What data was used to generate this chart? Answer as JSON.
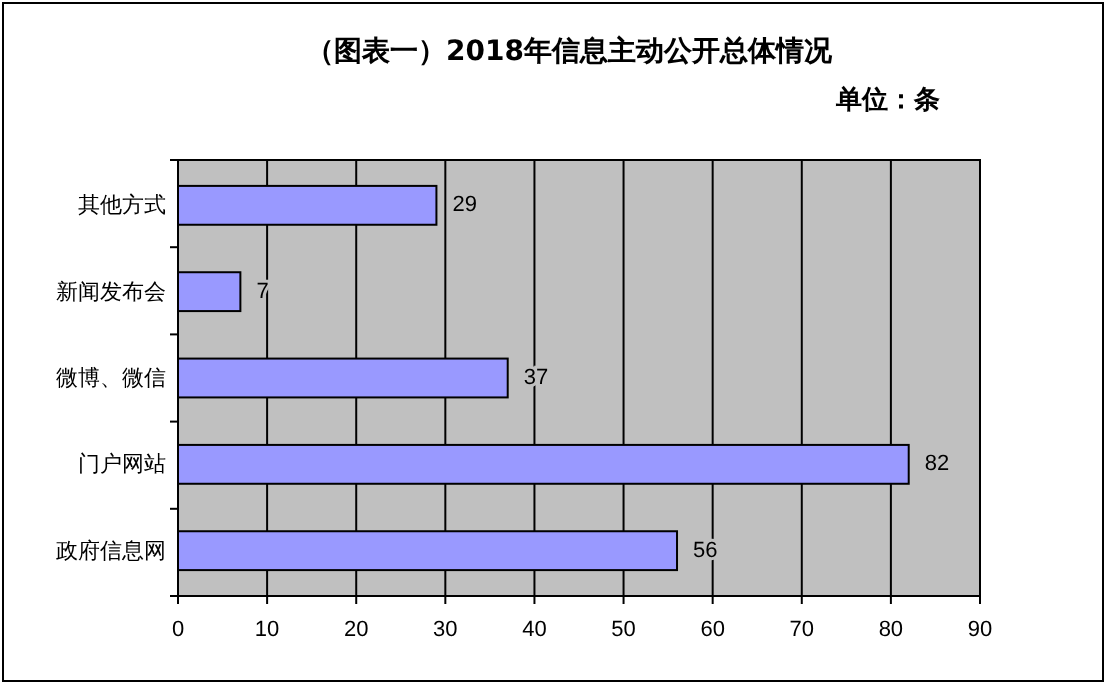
{
  "chart_data": {
    "type": "bar",
    "orientation": "horizontal",
    "title": "（图表一）2018年信息主动公开总体情况",
    "subtitle": "单位：条",
    "categories": [
      "其他方式",
      "新闻发布会",
      "微博、微信",
      "门户网站",
      "政府信息网"
    ],
    "values": [
      29,
      7,
      37,
      82,
      56
    ],
    "color": "#9999ff",
    "xlim": [
      0,
      90
    ],
    "xticks": [
      0,
      10,
      20,
      30,
      40,
      50,
      60,
      70,
      80,
      90
    ],
    "grid": "x",
    "data_labels": true
  }
}
